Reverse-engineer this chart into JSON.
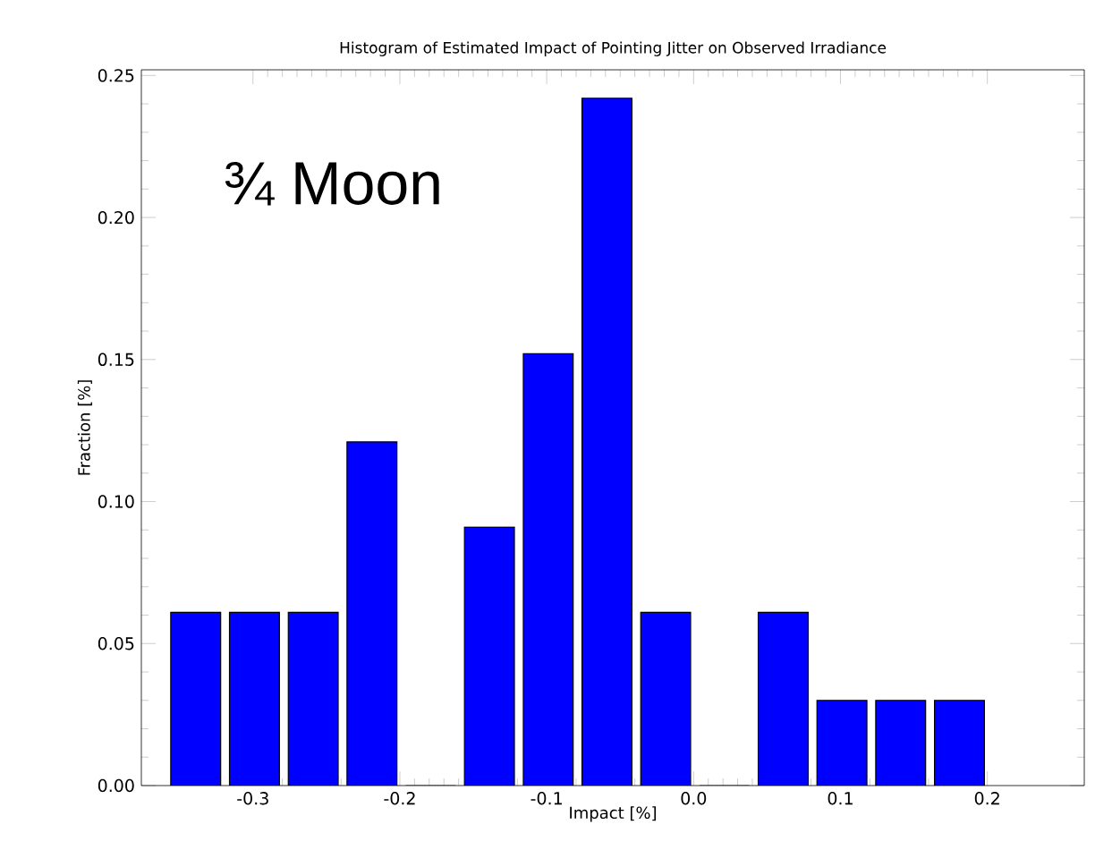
{
  "chart_data": {
    "type": "histogram",
    "title": "Histogram of Estimated Impact of Pointing Jitter on Observed Irradiance",
    "xlabel": "Impact [%]",
    "ylabel": "Fraction [%]",
    "bins": [
      -0.36,
      -0.32,
      -0.28,
      -0.24,
      -0.2,
      -0.16,
      -0.12,
      -0.08,
      -0.04,
      0.0,
      0.04,
      0.08,
      0.12,
      0.16,
      0.2
    ],
    "values": [
      0.061,
      0.061,
      0.061,
      0.121,
      0.0,
      0.091,
      0.152,
      0.242,
      0.061,
      0.0,
      0.061,
      0.03,
      0.03,
      0.03
    ],
    "color": "#0000ff",
    "xlim": [
      -0.376,
      0.266
    ],
    "ylim": [
      0,
      0.252
    ],
    "xticks": [
      {
        "value": -0.3,
        "label": "-0.3"
      },
      {
        "value": -0.2,
        "label": "-0.2"
      },
      {
        "value": -0.1,
        "label": "-0.1"
      },
      {
        "value": 0.0,
        "label": "0.0"
      },
      {
        "value": 0.1,
        "label": "0.1"
      },
      {
        "value": 0.2,
        "label": "0.2"
      }
    ],
    "yticks": [
      {
        "value": 0,
        "label": "0.00"
      },
      {
        "value": 0.05,
        "label": "0.05"
      },
      {
        "value": 0.1,
        "label": "0.10"
      },
      {
        "value": 0.15,
        "label": "0.15"
      },
      {
        "value": 0.2,
        "label": "0.20"
      },
      {
        "value": 0.25,
        "label": "0.25"
      }
    ],
    "annotations": [
      "¾ Moon"
    ]
  }
}
